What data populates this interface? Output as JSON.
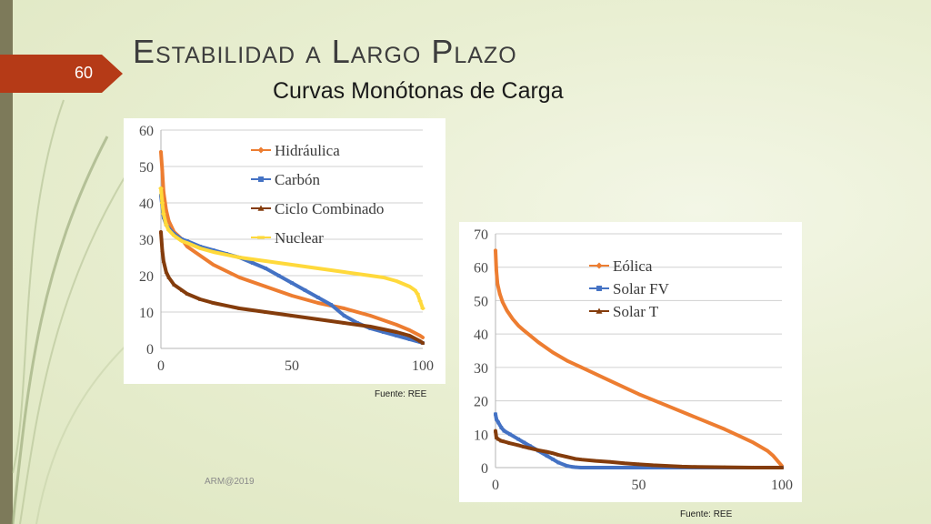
{
  "slide": {
    "number": "60",
    "title": "Estabilidad a Largo Plazo",
    "subtitle": "Curvas Monótonas de Carga",
    "footer": "ARM@2019",
    "colors": {
      "accent": "#b53a17",
      "bar": "#7d7a5a"
    }
  },
  "chart_data": [
    {
      "type": "line",
      "xlim": [
        0,
        100
      ],
      "ylim": [
        0,
        60
      ],
      "x_ticks": [
        "0",
        "50",
        "100"
      ],
      "y_ticks": [
        "0",
        "10",
        "20",
        "30",
        "40",
        "50",
        "60"
      ],
      "grid": true,
      "legend_position": "top-right",
      "source": "Fuente: REE",
      "series": [
        {
          "name": "Hidráulica",
          "color": "#ed7d31",
          "marker": "diamond",
          "x": [
            0,
            0.5,
            1,
            2,
            3,
            5,
            8,
            10,
            15,
            20,
            30,
            40,
            50,
            60,
            70,
            80,
            90,
            95,
            99,
            100
          ],
          "y": [
            54,
            49,
            43,
            38,
            35,
            32,
            30,
            28,
            25.5,
            23,
            19.5,
            17,
            14.5,
            12.5,
            11,
            9,
            6.5,
            5,
            3.5,
            3
          ]
        },
        {
          "name": "Carbón",
          "color": "#4472c4",
          "marker": "square",
          "x": [
            0,
            1,
            2,
            3,
            5,
            8,
            10,
            15,
            20,
            25,
            30,
            35,
            40,
            45,
            50,
            55,
            60,
            65,
            70,
            75,
            80,
            85,
            90,
            95,
            100
          ],
          "y": [
            42,
            36,
            34,
            33,
            31.5,
            30,
            29.5,
            28,
            27,
            26,
            25,
            23.5,
            22,
            20,
            18,
            16,
            14,
            12,
            9,
            7,
            5.5,
            4.5,
            3.5,
            2.5,
            1.5
          ]
        },
        {
          "name": "Ciclo Combinado",
          "color": "#843c0c",
          "marker": "triangle",
          "x": [
            0,
            0.5,
            1,
            2,
            3,
            5,
            8,
            10,
            15,
            20,
            30,
            40,
            50,
            60,
            70,
            80,
            90,
            95,
            99,
            100
          ],
          "y": [
            32,
            27,
            24,
            21,
            19.5,
            17.5,
            16,
            15,
            13.5,
            12.5,
            11,
            10,
            9,
            8,
            7,
            6,
            4.5,
            3.5,
            2,
            1.5
          ]
        },
        {
          "name": "Nuclear",
          "color": "#ffd93b",
          "marker": "dash",
          "x": [
            0,
            0.5,
            1,
            2,
            3,
            5,
            8,
            10,
            15,
            20,
            30,
            40,
            50,
            60,
            70,
            80,
            85,
            90,
            95,
            97,
            98,
            99,
            100
          ],
          "y": [
            44,
            40,
            37,
            34,
            32.5,
            31,
            29.5,
            29,
            27.5,
            26.5,
            25,
            24,
            23,
            22,
            21,
            20,
            19.5,
            18.5,
            17,
            16,
            15,
            13,
            11
          ]
        }
      ]
    },
    {
      "type": "line",
      "xlim": [
        0,
        100
      ],
      "ylim": [
        0,
        70
      ],
      "x_ticks": [
        "0",
        "50",
        "100"
      ],
      "y_ticks": [
        "0",
        "10",
        "20",
        "30",
        "40",
        "50",
        "60",
        "70"
      ],
      "grid": true,
      "legend_position": "top-right",
      "source": "Fuente: REE",
      "series": [
        {
          "name": "Eólica",
          "color": "#ed7d31",
          "marker": "diamond",
          "x": [
            0,
            0.3,
            0.7,
            1.5,
            2.5,
            4,
            6,
            8,
            10,
            15,
            20,
            25,
            30,
            40,
            50,
            60,
            70,
            80,
            85,
            90,
            95,
            97,
            98,
            99,
            100
          ],
          "y": [
            65,
            59,
            55,
            52,
            49.5,
            47,
            44.5,
            42.5,
            41,
            37.5,
            34.5,
            32,
            30,
            26,
            22,
            18.5,
            15,
            11.5,
            9.5,
            7.5,
            5,
            3.5,
            2.5,
            1.5,
            0.5
          ]
        },
        {
          "name": "Solar FV",
          "color": "#4472c4",
          "marker": "square",
          "x": [
            0,
            0.3,
            1,
            2,
            3,
            5,
            8,
            10,
            12,
            15,
            18,
            20,
            22,
            25,
            27,
            28,
            30,
            35,
            40,
            50,
            60,
            70,
            80,
            90,
            100
          ],
          "y": [
            16,
            14.5,
            13.5,
            12,
            11,
            10,
            8.5,
            7.5,
            6.5,
            5,
            3.5,
            2.5,
            1.5,
            0.5,
            0.2,
            0.1,
            0,
            0,
            0,
            0,
            0,
            0,
            0,
            0,
            0
          ]
        },
        {
          "name": "Solar T",
          "color": "#843c0c",
          "marker": "triangle",
          "x": [
            0,
            0.3,
            1,
            2,
            3,
            5,
            8,
            10,
            12,
            15,
            18,
            20,
            22,
            25,
            28,
            30,
            35,
            40,
            45,
            50,
            55,
            60,
            65,
            70,
            80,
            90,
            100
          ],
          "y": [
            11,
            9,
            8.5,
            8,
            7.8,
            7.3,
            6.7,
            6.2,
            5.8,
            5.2,
            4.7,
            4.3,
            3.8,
            3.2,
            2.6,
            2.4,
            2,
            1.7,
            1.3,
            1,
            0.7,
            0.5,
            0.3,
            0.2,
            0.1,
            0,
            0
          ]
        }
      ]
    }
  ]
}
